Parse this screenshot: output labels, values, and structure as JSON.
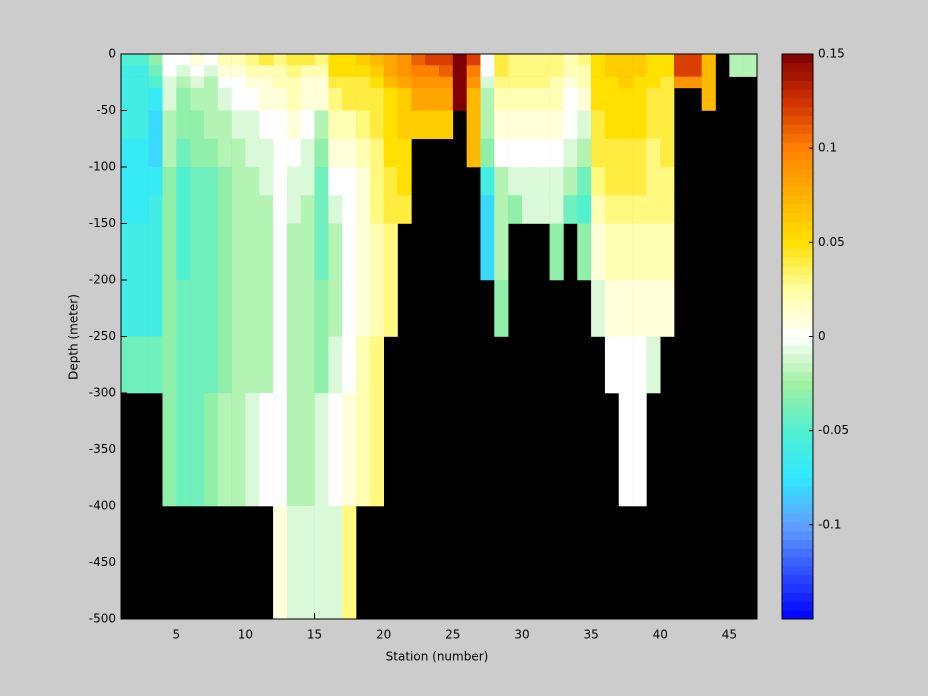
{
  "chart_data": {
    "type": "heatmap",
    "xlabel": "Station (number)",
    "ylabel": "Depth (meter)",
    "x": [
      1,
      2,
      3,
      4,
      5,
      6,
      7,
      8,
      9,
      10,
      11,
      12,
      13,
      14,
      15,
      16,
      17,
      18,
      19,
      20,
      21,
      22,
      23,
      24,
      25,
      26,
      27,
      28,
      29,
      30,
      31,
      32,
      33,
      34,
      35,
      36,
      37,
      38,
      39,
      40,
      41,
      42,
      43,
      44,
      45,
      46,
      47
    ],
    "y": [
      0,
      -10,
      -20,
      -30,
      -50,
      -75,
      -100,
      -125,
      -150,
      -200,
      -250,
      -300,
      -400,
      -500
    ],
    "xlim": [
      1,
      47
    ],
    "xticks": [
      5,
      10,
      15,
      20,
      25,
      30,
      35,
      40,
      45
    ],
    "ylim": [
      -500,
      0
    ],
    "yticks": [
      0,
      -50,
      -100,
      -150,
      -200,
      -250,
      -300,
      -350,
      -400,
      -450,
      -500
    ],
    "clim": [
      -0.15,
      0.15
    ],
    "cticks": [
      0.15,
      0.1,
      0.05,
      0,
      -0.05,
      -0.1
    ],
    "colormap": [
      "#0000ff",
      "#3050ff",
      "#60a0ff",
      "#30e8ff",
      "#50f0d0",
      "#a0f0a0",
      "#ffffff",
      "#ffffa0",
      "#ffe000",
      "#ffb000",
      "#ff8000",
      "#d03000",
      "#800000"
    ],
    "missing_color": "#000000",
    "values": [
      [
        -0.05,
        -0.05,
        -0.03,
        0,
        0,
        0.01,
        0,
        0.02,
        0.02,
        0.03,
        0.04,
        0.03,
        0.04,
        0.04,
        0.03,
        0.05,
        0.05,
        0.06,
        0.07,
        0.08,
        0.09,
        0.11,
        0.12,
        0.12,
        0.15,
        0.12,
        0,
        0.04,
        0.03,
        0.03,
        0.03,
        0.03,
        0.02,
        0.03,
        0.05,
        0.06,
        0.06,
        0.06,
        0.05,
        0.05,
        0.12,
        0.12,
        0.07,
        null,
        -0.02,
        -0.02
      ],
      [
        -0.06,
        -0.06,
        -0.04,
        0,
        -0.01,
        0,
        -0.01,
        0.01,
        0.01,
        0.02,
        0.02,
        0.02,
        0.03,
        0.02,
        0.02,
        0.05,
        0.05,
        0.05,
        0.06,
        0.08,
        0.09,
        0.1,
        0.1,
        0.11,
        0.15,
        0.1,
        0,
        0.04,
        0.03,
        0.03,
        0.03,
        0.03,
        0.02,
        0.02,
        0.05,
        0.06,
        0.06,
        0.06,
        0.05,
        0.05,
        0.12,
        0.12,
        0.07,
        null,
        -0.02,
        -0.02
      ],
      [
        -0.06,
        -0.06,
        -0.05,
        -0.01,
        -0.02,
        -0.01,
        -0.02,
        0,
        0,
        0.01,
        0.01,
        0.02,
        0.02,
        0.01,
        0.01,
        0.04,
        0.04,
        0.04,
        0.05,
        0.07,
        0.08,
        0.09,
        0.09,
        0.09,
        0.15,
        0.09,
        -0.01,
        0.03,
        0.03,
        0.03,
        0.03,
        0.02,
        0.01,
        0.02,
        0.05,
        0.05,
        0.06,
        0.05,
        0.05,
        0.04,
        0.09,
        0.09,
        0.07,
        null,
        null,
        null
      ],
      [
        -0.06,
        -0.06,
        -0.07,
        -0.01,
        -0.03,
        -0.02,
        -0.02,
        -0.01,
        0,
        0,
        0.01,
        0.01,
        0.02,
        0.01,
        0.01,
        0.03,
        0.04,
        0.04,
        0.04,
        0.05,
        0.06,
        0.08,
        0.08,
        0.08,
        0.15,
        0.07,
        -0.02,
        0.02,
        0.02,
        0.02,
        0.02,
        0.02,
        0,
        0.01,
        0.05,
        0.05,
        0.05,
        0.05,
        0.04,
        0.04,
        null,
        null,
        0.07,
        null,
        null,
        null
      ],
      [
        -0.06,
        -0.06,
        -0.08,
        -0.02,
        -0.03,
        -0.03,
        -0.02,
        -0.02,
        -0.01,
        -0.01,
        0,
        0,
        0.01,
        0,
        -0.02,
        0.02,
        0.02,
        0.03,
        0.04,
        0.05,
        0.06,
        0.06,
        0.06,
        0.06,
        null,
        0.07,
        -0.02,
        0.01,
        0.01,
        0.01,
        0.01,
        0.01,
        0,
        -0.01,
        0.04,
        0.05,
        0.05,
        0.05,
        0.04,
        0.04,
        null,
        null,
        null,
        null,
        null,
        null
      ],
      [
        -0.07,
        -0.07,
        -0.08,
        -0.02,
        -0.04,
        -0.03,
        -0.03,
        -0.02,
        -0.02,
        -0.01,
        -0.01,
        0,
        0,
        -0.01,
        -0.03,
        0.01,
        0.01,
        0.02,
        0.03,
        0.05,
        0.05,
        null,
        null,
        null,
        null,
        0.07,
        -0.03,
        0,
        0,
        0,
        0,
        0,
        -0.01,
        -0.02,
        0.04,
        0.04,
        0.04,
        0.04,
        0.03,
        0.04,
        null,
        null,
        null,
        null,
        null,
        null
      ],
      [
        -0.07,
        -0.07,
        -0.07,
        -0.03,
        -0.05,
        -0.04,
        -0.04,
        -0.03,
        -0.02,
        -0.02,
        -0.01,
        0,
        -0.01,
        -0.01,
        -0.04,
        0,
        0,
        0.01,
        0.03,
        0.04,
        0.05,
        null,
        null,
        null,
        null,
        null,
        -0.06,
        -0.02,
        -0.01,
        -0.01,
        -0.01,
        -0.01,
        -0.02,
        -0.04,
        0.03,
        0.04,
        0.04,
        0.04,
        0.03,
        0.03,
        null,
        null,
        null,
        null,
        null,
        null
      ],
      [
        -0.07,
        -0.07,
        -0.06,
        -0.03,
        -0.05,
        -0.04,
        -0.04,
        -0.03,
        -0.02,
        -0.02,
        -0.02,
        0,
        -0.01,
        -0.02,
        -0.04,
        -0.01,
        0,
        0.01,
        0.03,
        0.04,
        0.04,
        null,
        null,
        null,
        null,
        null,
        -0.08,
        -0.02,
        -0.03,
        -0.01,
        -0.01,
        -0.01,
        -0.04,
        -0.05,
        0.02,
        0.03,
        0.03,
        0.03,
        0.03,
        0.03,
        null,
        null,
        null,
        null,
        null,
        null
      ],
      [
        -0.06,
        -0.06,
        -0.06,
        -0.03,
        -0.05,
        -0.04,
        -0.04,
        -0.03,
        -0.02,
        -0.02,
        -0.02,
        0,
        -0.02,
        -0.02,
        -0.04,
        -0.02,
        0,
        0.01,
        0.02,
        0.03,
        null,
        null,
        null,
        null,
        null,
        null,
        -0.08,
        -0.02,
        null,
        null,
        null,
        -0.03,
        null,
        -0.03,
        0.01,
        0.02,
        0.02,
        0.02,
        0.02,
        0.02,
        null,
        null,
        null,
        null,
        null,
        null
      ],
      [
        -0.06,
        -0.06,
        -0.06,
        -0.03,
        -0.04,
        -0.04,
        -0.04,
        -0.03,
        -0.02,
        -0.02,
        -0.02,
        0,
        -0.02,
        -0.02,
        -0.03,
        -0.02,
        0,
        0.01,
        0.02,
        0.03,
        null,
        null,
        null,
        null,
        null,
        null,
        null,
        -0.03,
        null,
        null,
        null,
        null,
        null,
        null,
        -0.01,
        0.01,
        0.01,
        0.01,
        0.01,
        0.01,
        null,
        null,
        null,
        null,
        null,
        null
      ],
      [
        -0.04,
        -0.04,
        -0.04,
        -0.03,
        -0.04,
        -0.04,
        -0.04,
        -0.03,
        -0.02,
        -0.02,
        -0.02,
        0,
        -0.02,
        -0.02,
        -0.03,
        -0.01,
        0,
        0.02,
        0.03,
        null,
        null,
        null,
        null,
        null,
        null,
        null,
        null,
        null,
        null,
        null,
        null,
        null,
        null,
        null,
        null,
        0,
        0,
        0,
        -0.01,
        null,
        null,
        null,
        null,
        null,
        null,
        null
      ],
      [
        null,
        null,
        null,
        -0.03,
        -0.04,
        -0.04,
        -0.03,
        -0.02,
        -0.02,
        -0.01,
        0,
        0,
        -0.02,
        -0.02,
        -0.01,
        0,
        0.01,
        0.02,
        0.03,
        null,
        null,
        null,
        null,
        null,
        null,
        null,
        null,
        null,
        null,
        null,
        null,
        null,
        null,
        null,
        null,
        null,
        0,
        0,
        null,
        null,
        null,
        null,
        null,
        null,
        null,
        null
      ],
      [
        null,
        null,
        null,
        null,
        null,
        null,
        null,
        null,
        null,
        null,
        null,
        0.01,
        -0.01,
        -0.01,
        -0.01,
        -0.01,
        0.03,
        null,
        null,
        null,
        null,
        null,
        null,
        null,
        null,
        null,
        null,
        null,
        null,
        null,
        null,
        null,
        null,
        null,
        null,
        null,
        null,
        null,
        null,
        null,
        null,
        null,
        null,
        null,
        null,
        null
      ]
    ]
  }
}
